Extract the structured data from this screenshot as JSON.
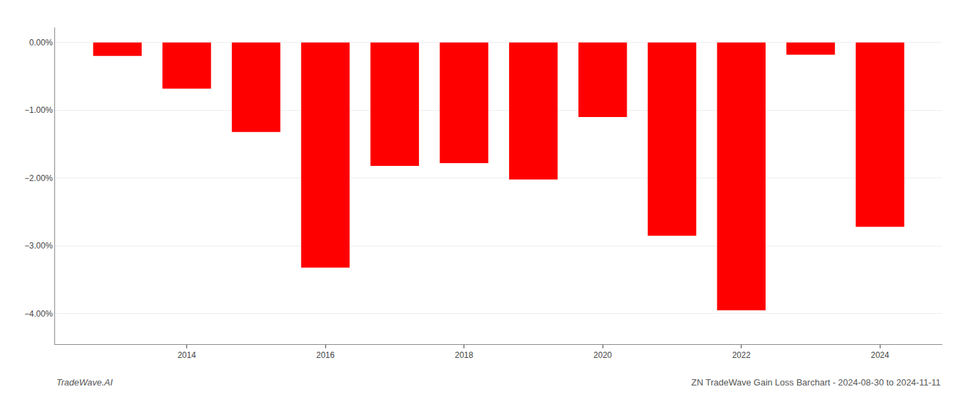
{
  "chart_data": {
    "type": "bar",
    "x": [
      2013,
      2014,
      2015,
      2016,
      2017,
      2018,
      2019,
      2020,
      2021,
      2022,
      2023,
      2024
    ],
    "values": [
      -0.2,
      -0.68,
      -1.32,
      -3.32,
      -1.82,
      -1.78,
      -2.02,
      -1.1,
      -2.85,
      -3.95,
      -0.18,
      -2.72
    ],
    "color": "#ff0000",
    "xlim": [
      2012.1,
      2024.9
    ],
    "xticks": [
      2014,
      2016,
      2018,
      2020,
      2022,
      2024
    ],
    "ylim": [
      -4.45,
      0.22
    ],
    "yticks": [
      {
        "value": 0.0,
        "label": "0.00%"
      },
      {
        "value": -1.0,
        "label": "−1.00%"
      },
      {
        "value": -2.0,
        "label": "−2.00%"
      },
      {
        "value": -3.0,
        "label": "−3.00%"
      },
      {
        "value": -4.0,
        "label": "−4.00%"
      }
    ],
    "grid": "y",
    "annotations": [
      "TradeWave.AI",
      "ZN TradeWave Gain Loss Barchart - 2024-08-30 to 2024-11-11"
    ]
  }
}
